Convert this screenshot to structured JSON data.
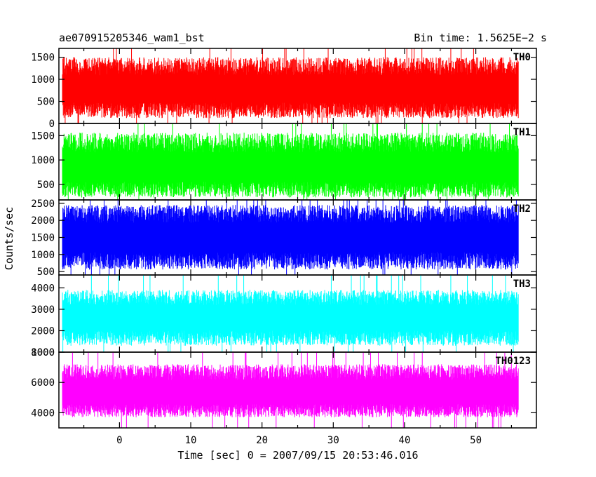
{
  "header": {
    "left_title": "ae070915205346_wam1_bst",
    "right_title": "Bin time: 1.5625E−2 s"
  },
  "chart_data": {
    "type": "line",
    "title": "ae070915205346_wam1_bst",
    "subtitle": "Bin time: 1.5625E−2 s",
    "xlabel": "Time [sec] 0 = 2007/09/15 20:53:46.016",
    "ylabel": "Counts/sec",
    "xlim": [
      -8.5,
      58.5
    ],
    "x_data_range": [
      -8,
      56
    ],
    "x_ticks": [
      0,
      10,
      20,
      30,
      40,
      50
    ],
    "grid": false,
    "panels": [
      {
        "name": "TH0",
        "color": "#ff0000",
        "ylim": [
          0,
          1700
        ],
        "yticks": [
          0,
          500,
          1000,
          1500
        ],
        "baseline": 760,
        "low": 120,
        "high": 1500,
        "spike": 1700
      },
      {
        "name": "TH1",
        "color": "#00ff00",
        "ylim": [
          180,
          1750
        ],
        "yticks": [
          500,
          1000,
          1500
        ],
        "baseline": 820,
        "low": 230,
        "high": 1560,
        "spike": 1750
      },
      {
        "name": "TH2",
        "color": "#0000ff",
        "ylim": [
          400,
          2600
        ],
        "yticks": [
          500,
          1000,
          1500,
          2000,
          2500
        ],
        "baseline": 1500,
        "low": 560,
        "high": 2450,
        "spike": 2600
      },
      {
        "name": "TH3",
        "color": "#00ffff",
        "ylim": [
          1000,
          4600
        ],
        "yticks": [
          1000,
          2000,
          3000,
          4000
        ],
        "baseline": 2600,
        "low": 1300,
        "high": 3900,
        "spike": 4600
      },
      {
        "name": "TH0123",
        "color": "#ff00ff",
        "ylim": [
          3000,
          8000
        ],
        "yticks": [
          4000,
          6000,
          8000
        ],
        "baseline": 5300,
        "low": 3700,
        "high": 7200,
        "spike": 8000
      }
    ]
  }
}
